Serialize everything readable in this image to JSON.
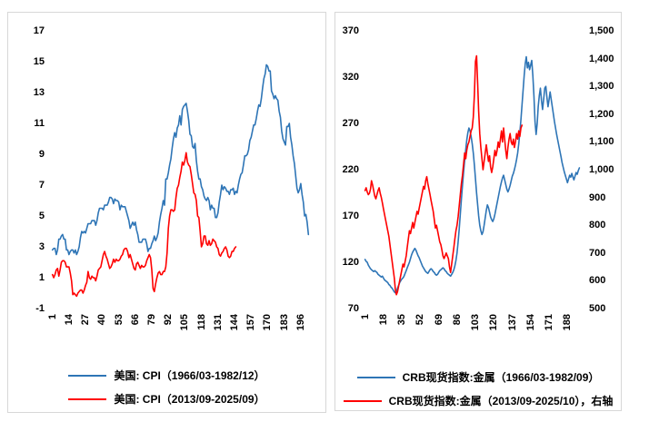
{
  "page": {
    "background": "#ffffff"
  },
  "colors": {
    "series_blue": "#2E75B6",
    "series_red": "#FF0000",
    "panel_border": "#d7d7d7",
    "text": "#000000"
  },
  "chart_data": [
    {
      "type": "line",
      "title": "",
      "xlabel": "",
      "ylabel": "",
      "grid": false,
      "legend_position": "bottom",
      "x_axis": {
        "count": 202,
        "tick_labels": [
          1,
          14,
          27,
          40,
          53,
          66,
          79,
          92,
          105,
          118,
          131,
          144,
          157,
          170,
          183,
          196
        ]
      },
      "y_axes": [
        {
          "side": "left",
          "min": -1,
          "max": 17,
          "ticks": [
            "17",
            "15",
            "13",
            "11",
            "9",
            "7",
            "5",
            "3",
            "1",
            "-1"
          ]
        }
      ],
      "legend": [
        {
          "label": "美国: CPI（1966/03-1982/12）",
          "color": "#2E75B6"
        },
        {
          "label": "美国: CPI（2013/09-2025/09）",
          "color": "#FF0000"
        }
      ],
      "series": [
        {
          "name": "美国: CPI（1966/03-1982/12）",
          "color": "#2E75B6",
          "axis": 0,
          "values": [
            2.8,
            2.9,
            2.9,
            2.5,
            2.8,
            3.5,
            3.5,
            3.7,
            3.8,
            3.5,
            3.5,
            2.8,
            2.8,
            2.5,
            2.7,
            2.8,
            2.8,
            2.6,
            2.8,
            2.5,
            2.7,
            3.0,
            3.6,
            4.0,
            3.9,
            4.0,
            3.9,
            4.2,
            4.5,
            4.5,
            4.5,
            4.7,
            4.7,
            4.7,
            4.4,
            4.7,
            5.2,
            5.5,
            5.5,
            5.5,
            5.4,
            5.7,
            5.7,
            5.7,
            5.9,
            6.2,
            6.2,
            6.1,
            5.8,
            6.1,
            6.0,
            6.0,
            5.9,
            5.4,
            5.7,
            5.6,
            5.6,
            5.6,
            5.3,
            5.0,
            4.7,
            4.2,
            4.4,
            4.6,
            4.4,
            4.6,
            4.1,
            3.8,
            3.3,
            3.3,
            3.3,
            3.5,
            3.5,
            3.5,
            3.2,
            2.7,
            2.9,
            2.9,
            3.2,
            3.4,
            3.7,
            3.4,
            3.6,
            3.9,
            4.6,
            5.1,
            5.5,
            6.0,
            5.7,
            7.4,
            7.4,
            7.8,
            8.3,
            8.7,
            9.4,
            10.0,
            10.4,
            10.1,
            10.7,
            10.9,
            11.5,
            10.9,
            11.9,
            12.1,
            12.2,
            12.3,
            11.8,
            11.2,
            10.3,
            10.2,
            9.5,
            9.4,
            9.7,
            8.6,
            7.9,
            7.4,
            7.4,
            6.9,
            6.7,
            6.3,
            6.1,
            6.0,
            6.2,
            6.0,
            5.4,
            5.7,
            5.5,
            5.5,
            4.9,
            4.9,
            5.2,
            5.9,
            6.4,
            7.0,
            6.7,
            6.9,
            6.8,
            6.6,
            6.6,
            6.4,
            6.7,
            6.7,
            6.8,
            6.4,
            6.6,
            6.5,
            7.0,
            7.4,
            7.7,
            7.8,
            8.3,
            8.9,
            8.9,
            9.0,
            9.3,
            9.9,
            10.1,
            10.5,
            10.9,
            10.9,
            11.3,
            11.8,
            12.2,
            12.1,
            12.6,
            13.3,
            13.9,
            14.2,
            14.8,
            14.7,
            14.4,
            14.4,
            13.1,
            12.9,
            12.6,
            12.8,
            12.6,
            12.5,
            11.8,
            11.4,
            10.5,
            10.0,
            9.8,
            9.6,
            10.8,
            10.8,
            11.0,
            10.1,
            9.6,
            8.9,
            8.4,
            7.6,
            6.8,
            6.5,
            6.7,
            7.1,
            6.4,
            5.9,
            5.0,
            5.1,
            4.6,
            3.8
          ]
        },
        {
          "name": "美国: CPI（2013/09-2025/09）",
          "color": "#FF0000",
          "axis": 0,
          "values": [
            1.2,
            1.0,
            1.2,
            1.5,
            1.6,
            1.1,
            1.5,
            2.0,
            2.1,
            2.1,
            2.0,
            1.7,
            1.7,
            1.7,
            1.3,
            0.8,
            -0.1,
            0.0,
            -0.1,
            -0.2,
            0.0,
            0.1,
            0.2,
            0.2,
            0.0,
            0.2,
            0.5,
            0.7,
            1.4,
            1.0,
            0.9,
            1.1,
            1.0,
            1.0,
            0.8,
            1.1,
            1.5,
            1.6,
            1.7,
            2.1,
            2.5,
            2.7,
            2.4,
            2.2,
            1.9,
            1.6,
            1.7,
            1.9,
            2.2,
            2.0,
            2.2,
            2.1,
            2.1,
            2.2,
            2.4,
            2.5,
            2.8,
            2.9,
            2.9,
            2.7,
            2.3,
            2.5,
            2.2,
            1.9,
            1.6,
            1.5,
            1.9,
            2.0,
            1.8,
            1.6,
            1.8,
            1.7,
            1.7,
            1.8,
            2.1,
            2.3,
            2.5,
            2.3,
            1.5,
            0.3,
            0.1,
            0.6,
            1.0,
            1.3,
            1.4,
            1.2,
            1.2,
            1.4,
            1.4,
            1.7,
            2.6,
            4.2,
            5.0,
            5.4,
            5.4,
            5.3,
            5.4,
            6.2,
            6.8,
            7.0,
            7.5,
            7.9,
            8.5,
            8.3,
            8.6,
            9.1,
            8.5,
            8.3,
            8.2,
            7.7,
            7.1,
            6.5,
            6.4,
            6.0,
            5.0,
            4.9,
            4.0,
            3.0,
            3.2,
            3.7,
            3.7,
            3.2,
            3.1,
            3.4,
            3.1,
            3.2,
            3.5,
            3.4,
            3.3,
            3.0,
            2.9,
            2.5,
            2.4,
            2.6,
            2.7,
            2.9,
            3.0,
            2.8,
            2.4,
            2.3,
            2.4,
            2.7,
            2.7,
            2.9,
            3.0
          ]
        }
      ]
    },
    {
      "type": "line",
      "title": "",
      "xlabel": "",
      "ylabel": "",
      "grid": false,
      "legend_position": "bottom",
      "x_axis": {
        "count": 199,
        "tick_labels": [
          1,
          18,
          35,
          52,
          69,
          86,
          103,
          120,
          137,
          154,
          171,
          188
        ]
      },
      "y_axes": [
        {
          "side": "left",
          "min": 70,
          "max": 370,
          "ticks": [
            "370",
            "320",
            "270",
            "220",
            "170",
            "120",
            "70"
          ]
        },
        {
          "side": "right",
          "min": 500,
          "max": 1500,
          "ticks": [
            "1,500",
            "1,400",
            "1,300",
            "1,200",
            "1,100",
            "1,000",
            "900",
            "800",
            "700",
            "600",
            "500"
          ]
        }
      ],
      "legend": [
        {
          "label": "CRB现货指数:金属（1966/03-1982/09）",
          "color": "#2E75B6"
        },
        {
          "label": "CRB现货指数:金属（2013/09-2025/10），右轴",
          "color": "#FF0000"
        }
      ],
      "series": [
        {
          "name": "CRB现货指数:金属（1966/03-1982/09）",
          "color": "#2E75B6",
          "axis": 0,
          "values": [
            123,
            121,
            120,
            117,
            115,
            113,
            112,
            111,
            110,
            111,
            110,
            109,
            107,
            106,
            105,
            104,
            105,
            103,
            101,
            100,
            99,
            98,
            96,
            95,
            93,
            92,
            90,
            88,
            87,
            89,
            92,
            95,
            98,
            100,
            102,
            103,
            105,
            108,
            111,
            114,
            117,
            120,
            124,
            128,
            131,
            133,
            135,
            133,
            130,
            127,
            125,
            122,
            119,
            116,
            114,
            112,
            110,
            109,
            108,
            110,
            112,
            113,
            112,
            110,
            109,
            107,
            106,
            107,
            109,
            111,
            112,
            113,
            114,
            113,
            111,
            110,
            108,
            107,
            106,
            105,
            107,
            109,
            112,
            116,
            122,
            130,
            142,
            156,
            172,
            188,
            203,
            217,
            230,
            242,
            252,
            260,
            265,
            262,
            256,
            248,
            238,
            225,
            210,
            195,
            182,
            170,
            160,
            154,
            150,
            153,
            160,
            168,
            176,
            182,
            179,
            174,
            169,
            166,
            164,
            167,
            172,
            178,
            184,
            190,
            196,
            202,
            207,
            211,
            214,
            209,
            204,
            199,
            196,
            199,
            203,
            208,
            213,
            216,
            220,
            225,
            231,
            238,
            248,
            260,
            274,
            290,
            306,
            322,
            335,
            342,
            330,
            336,
            328,
            333,
            338,
            322,
            300,
            272,
            258,
            270,
            288,
            300,
            308,
            295,
            285,
            296,
            308,
            310,
            298,
            288,
            296,
            304,
            296,
            288,
            280,
            272,
            265,
            258,
            252,
            246,
            240,
            234,
            228,
            223,
            218,
            214,
            210,
            206,
            210,
            214,
            212,
            216,
            212,
            209,
            213,
            217,
            215,
            219,
            222
          ]
        },
        {
          "name": "CRB现货指数:金属（2013/09-2025/10），右轴",
          "color": "#FF0000",
          "axis": 1,
          "values": [
            925,
            935,
            920,
            910,
            915,
            930,
            960,
            945,
            925,
            905,
            895,
            910,
            925,
            935,
            915,
            900,
            880,
            860,
            840,
            820,
            800,
            780,
            760,
            730,
            700,
            670,
            640,
            610,
            570,
            550,
            560,
            580,
            600,
            620,
            640,
            660,
            650,
            670,
            690,
            720,
            750,
            780,
            770,
            790,
            810,
            790,
            810,
            830,
            850,
            840,
            860,
            880,
            900,
            920,
            940,
            930,
            960,
            975,
            950,
            930,
            910,
            890,
            870,
            850,
            820,
            790,
            800,
            780,
            760,
            740,
            730,
            710,
            690,
            680,
            690,
            700,
            690,
            680,
            650,
            630,
            660,
            690,
            720,
            750,
            780,
            800,
            830,
            870,
            910,
            950,
            980,
            1020,
            1060,
            1040,
            1070,
            1090,
            1100,
            1120,
            1140,
            1150,
            1190,
            1270,
            1390,
            1410,
            1310,
            1210,
            1130,
            1080,
            1040,
            1000,
            1030,
            1060,
            1090,
            1060,
            1030,
            1050,
            1010,
            990,
            1010,
            1040,
            1070,
            1050,
            1070,
            1100,
            1080,
            1110,
            1140,
            1100,
            1150,
            1110,
            1070,
            1040,
            1080,
            1110,
            1130,
            1100,
            1090,
            1110,
            1080,
            1100,
            1130,
            1110,
            1140,
            1120,
            1150,
            1160
          ]
        }
      ]
    }
  ]
}
